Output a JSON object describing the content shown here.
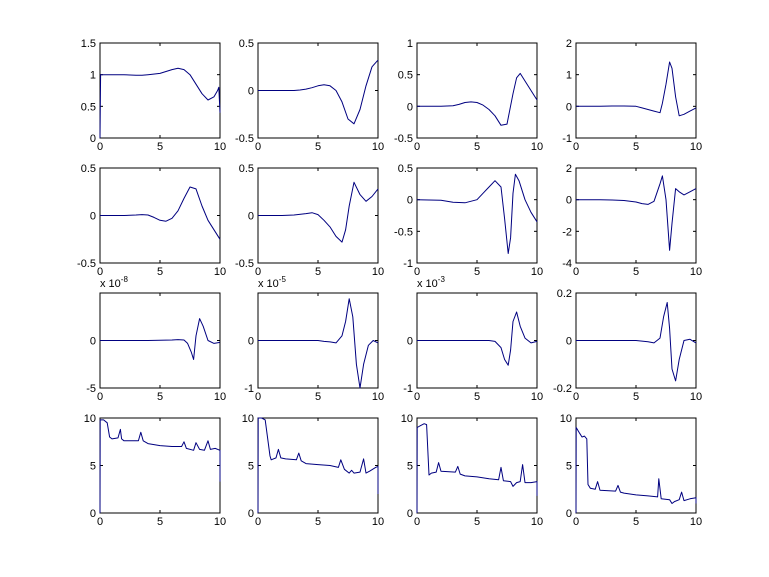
{
  "figure": {
    "background": "#ffffff",
    "line_color": "#000080",
    "axes_color": "#000000"
  },
  "chart_data": [
    {
      "type": "line",
      "grid": false,
      "xlim": [
        0,
        10
      ],
      "ylim": [
        0,
        1.5
      ],
      "xticks": [
        0,
        5,
        10
      ],
      "xtick_labels": [
        "0",
        "5",
        "10"
      ],
      "yticks": [
        0,
        0.5,
        1,
        1.5
      ],
      "ytick_labels": [
        "0",
        "0.5",
        "1",
        "1.5"
      ],
      "exponent": "",
      "series": [
        {
          "x": [
            0,
            0.05,
            0.1,
            2,
            3,
            3.5,
            4,
            5,
            5.5,
            6,
            6.5,
            7,
            7.5,
            8,
            8.5,
            9,
            9.5,
            9.8,
            9.9,
            10
          ],
          "y": [
            0,
            1.0,
            1.0,
            1.0,
            0.99,
            0.99,
            1.0,
            1.02,
            1.05,
            1.08,
            1.1,
            1.08,
            1.0,
            0.85,
            0.7,
            0.6,
            0.65,
            0.75,
            0.8,
            0.4
          ]
        }
      ]
    },
    {
      "type": "line",
      "grid": false,
      "xlim": [
        0,
        10
      ],
      "ylim": [
        -0.5,
        0.5
      ],
      "xticks": [
        0,
        5,
        10
      ],
      "xtick_labels": [
        "0",
        "5",
        "10"
      ],
      "yticks": [
        -0.5,
        0,
        0.5
      ],
      "ytick_labels": [
        "-0.5",
        "0",
        "0.5"
      ],
      "exponent": "",
      "series": [
        {
          "x": [
            0,
            1,
            2,
            3,
            3.5,
            4,
            4.5,
            5,
            5.5,
            6,
            6.5,
            7,
            7.5,
            8,
            8.5,
            9,
            9.5,
            10
          ],
          "y": [
            0,
            0,
            0,
            0,
            0.005,
            0.015,
            0.03,
            0.05,
            0.06,
            0.05,
            0.0,
            -0.12,
            -0.3,
            -0.35,
            -0.2,
            0.05,
            0.25,
            0.32
          ]
        }
      ]
    },
    {
      "type": "line",
      "grid": false,
      "xlim": [
        0,
        10
      ],
      "ylim": [
        -0.5,
        1
      ],
      "xticks": [
        0,
        5,
        10
      ],
      "xtick_labels": [
        "0",
        "5",
        "10"
      ],
      "yticks": [
        -0.5,
        0,
        0.5,
        1
      ],
      "ytick_labels": [
        "-0.5",
        "0",
        "0.5",
        "1"
      ],
      "exponent": "",
      "series": [
        {
          "x": [
            0,
            1,
            2,
            3,
            3.5,
            4,
            4.5,
            5,
            5.5,
            6,
            6.5,
            7,
            7.5,
            8,
            8.3,
            8.6,
            9,
            9.5,
            10
          ],
          "y": [
            0,
            0,
            0,
            0.01,
            0.03,
            0.06,
            0.07,
            0.06,
            0.02,
            -0.05,
            -0.15,
            -0.3,
            -0.28,
            0.2,
            0.45,
            0.52,
            0.4,
            0.25,
            0.1
          ]
        }
      ]
    },
    {
      "type": "line",
      "grid": false,
      "xlim": [
        0,
        10
      ],
      "ylim": [
        -1,
        2
      ],
      "xticks": [
        0,
        5,
        10
      ],
      "xtick_labels": [
        "0",
        "5",
        "10"
      ],
      "yticks": [
        -1,
        0,
        1,
        2
      ],
      "ytick_labels": [
        "-1",
        "0",
        "1",
        "2"
      ],
      "exponent": "",
      "series": [
        {
          "x": [
            0,
            2,
            3,
            4,
            5,
            5.5,
            6,
            6.5,
            7,
            7.2,
            7.5,
            7.8,
            8,
            8.3,
            8.6,
            9,
            9.5,
            10
          ],
          "y": [
            0,
            0,
            0.01,
            0.01,
            0.0,
            -0.05,
            -0.1,
            -0.15,
            -0.2,
            0.1,
            0.7,
            1.4,
            1.2,
            0.3,
            -0.3,
            -0.25,
            -0.15,
            -0.05
          ]
        }
      ]
    },
    {
      "type": "line",
      "grid": false,
      "xlim": [
        0,
        10
      ],
      "ylim": [
        -0.5,
        0.5
      ],
      "xticks": [
        0,
        5,
        10
      ],
      "xtick_labels": [
        "0",
        "5",
        "10"
      ],
      "yticks": [
        -0.5,
        0,
        0.5
      ],
      "ytick_labels": [
        "-0.5",
        "0",
        "0.5"
      ],
      "exponent": "",
      "series": [
        {
          "x": [
            0,
            2,
            3,
            3.5,
            4,
            4.5,
            5,
            5.5,
            6,
            6.5,
            7,
            7.5,
            8,
            8.5,
            9,
            9.5,
            10
          ],
          "y": [
            0,
            0,
            0.005,
            0.01,
            0.005,
            -0.02,
            -0.05,
            -0.06,
            -0.03,
            0.05,
            0.18,
            0.3,
            0.28,
            0.1,
            -0.05,
            -0.15,
            -0.25
          ]
        }
      ]
    },
    {
      "type": "line",
      "grid": false,
      "xlim": [
        0,
        10
      ],
      "ylim": [
        -0.5,
        0.5
      ],
      "xticks": [
        0,
        5,
        10
      ],
      "xtick_labels": [
        "0",
        "5",
        "10"
      ],
      "yticks": [
        -0.5,
        0,
        0.5
      ],
      "ytick_labels": [
        "-0.5",
        "0",
        "0.5"
      ],
      "exponent": "",
      "series": [
        {
          "x": [
            0,
            2,
            3,
            4,
            4.5,
            5,
            5.5,
            6,
            6.5,
            7,
            7.3,
            7.6,
            8,
            8.5,
            9,
            9.5,
            10
          ],
          "y": [
            0,
            0,
            0.005,
            0.02,
            0.03,
            0.01,
            -0.05,
            -0.12,
            -0.22,
            -0.28,
            -0.15,
            0.1,
            0.35,
            0.22,
            0.15,
            0.2,
            0.28
          ]
        }
      ]
    },
    {
      "type": "line",
      "grid": false,
      "xlim": [
        0,
        10
      ],
      "ylim": [
        -1,
        0.5
      ],
      "xticks": [
        0,
        5,
        10
      ],
      "xtick_labels": [
        "0",
        "5",
        "10"
      ],
      "yticks": [
        -1,
        -0.5,
        0,
        0.5
      ],
      "ytick_labels": [
        "-1",
        "-0.5",
        "0",
        "0.5"
      ],
      "exponent": "",
      "series": [
        {
          "x": [
            0,
            2,
            3,
            4,
            5,
            5.5,
            6,
            6.5,
            7,
            7.3,
            7.6,
            7.8,
            8,
            8.2,
            8.5,
            9,
            9.5,
            10
          ],
          "y": [
            0,
            -0.01,
            -0.04,
            -0.05,
            0.0,
            0.1,
            0.2,
            0.3,
            0.2,
            -0.3,
            -0.85,
            -0.6,
            0.1,
            0.4,
            0.3,
            0.0,
            -0.2,
            -0.35
          ]
        }
      ]
    },
    {
      "type": "line",
      "grid": false,
      "xlim": [
        0,
        10
      ],
      "ylim": [
        -4,
        2
      ],
      "xticks": [
        0,
        5,
        10
      ],
      "xtick_labels": [
        "0",
        "5",
        "10"
      ],
      "yticks": [
        -4,
        -2,
        0,
        2
      ],
      "ytick_labels": [
        "-4",
        "-2",
        "0",
        "2"
      ],
      "exponent": "",
      "series": [
        {
          "x": [
            0,
            2,
            3,
            4,
            5,
            5.5,
            6,
            6.5,
            7,
            7.2,
            7.5,
            7.8,
            8,
            8.3,
            8.6,
            9,
            9.5,
            10
          ],
          "y": [
            0,
            0,
            -0.02,
            -0.05,
            -0.15,
            -0.25,
            -0.3,
            -0.1,
            1.0,
            1.5,
            0.0,
            -3.2,
            -1.5,
            0.7,
            0.5,
            0.3,
            0.5,
            0.7
          ]
        }
      ]
    },
    {
      "type": "line",
      "grid": false,
      "xlim": [
        0,
        10
      ],
      "ylim": [
        -5,
        5
      ],
      "xticks": [
        0,
        5,
        10
      ],
      "xtick_labels": [
        "0",
        "5",
        "10"
      ],
      "yticks": [
        -5,
        0,
        5
      ],
      "ytick_labels": [
        "-5",
        "0",
        ""
      ],
      "exponent": "x 10-8",
      "series": [
        {
          "x": [
            0,
            2,
            4,
            6,
            6.5,
            7,
            7.3,
            7.6,
            7.8,
            8,
            8.3,
            8.6,
            9,
            9.5,
            10
          ],
          "y": [
            0,
            0,
            0,
            0.05,
            0.1,
            0.05,
            -0.3,
            -1.2,
            -2.0,
            0.5,
            2.3,
            1.5,
            0.0,
            -0.3,
            -0.2
          ]
        }
      ]
    },
    {
      "type": "line",
      "grid": false,
      "xlim": [
        0,
        10
      ],
      "ylim": [
        -1,
        1
      ],
      "xticks": [
        0,
        5,
        10
      ],
      "xtick_labels": [
        "0",
        "5",
        "10"
      ],
      "yticks": [
        -1,
        0,
        1
      ],
      "ytick_labels": [
        "-1",
        "0",
        ""
      ],
      "exponent": "x 10-5",
      "series": [
        {
          "x": [
            0,
            2,
            4,
            5,
            5.5,
            6,
            6.5,
            7,
            7.3,
            7.6,
            7.9,
            8.2,
            8.5,
            8.8,
            9.2,
            9.6,
            10
          ],
          "y": [
            0,
            0,
            0,
            0.0,
            -0.02,
            -0.03,
            -0.05,
            0.1,
            0.4,
            0.88,
            0.5,
            -0.5,
            -1.0,
            -0.5,
            -0.1,
            0.0,
            -0.05
          ]
        }
      ]
    },
    {
      "type": "line",
      "grid": false,
      "xlim": [
        0,
        10
      ],
      "ylim": [
        -1,
        1
      ],
      "xticks": [
        0,
        5,
        10
      ],
      "xtick_labels": [
        "0",
        "5",
        "10"
      ],
      "yticks": [
        -1,
        0,
        1
      ],
      "ytick_labels": [
        "-1",
        "0",
        ""
      ],
      "exponent": "x 10-3",
      "series": [
        {
          "x": [
            0,
            2,
            4,
            5,
            6,
            6.5,
            7,
            7.3,
            7.6,
            7.8,
            8,
            8.3,
            8.6,
            9,
            9.5,
            10
          ],
          "y": [
            0,
            0,
            0,
            0.0,
            0.0,
            -0.02,
            -0.15,
            -0.4,
            -0.52,
            -0.2,
            0.4,
            0.6,
            0.3,
            0.05,
            -0.05,
            -0.02
          ]
        }
      ]
    },
    {
      "type": "line",
      "grid": false,
      "xlim": [
        0,
        10
      ],
      "ylim": [
        -0.2,
        0.2
      ],
      "xticks": [
        0,
        5,
        10
      ],
      "xtick_labels": [
        "0",
        "5",
        "10"
      ],
      "yticks": [
        -0.2,
        0,
        0.2
      ],
      "ytick_labels": [
        "-0.2",
        "0",
        "0.2"
      ],
      "exponent": "",
      "series": [
        {
          "x": [
            0,
            2,
            4,
            5,
            6,
            6.5,
            7,
            7.3,
            7.6,
            7.8,
            8,
            8.3,
            8.6,
            9,
            9.5,
            10
          ],
          "y": [
            0,
            0,
            0,
            0.0,
            -0.005,
            -0.01,
            0.01,
            0.1,
            0.16,
            0.05,
            -0.12,
            -0.17,
            -0.08,
            0.0,
            0.005,
            -0.01
          ]
        }
      ]
    },
    {
      "type": "line",
      "grid": false,
      "xlim": [
        0,
        10
      ],
      "ylim": [
        0,
        10
      ],
      "xticks": [
        0,
        5,
        10
      ],
      "xtick_labels": [
        "0",
        "5",
        "10"
      ],
      "yticks": [
        0,
        5,
        10
      ],
      "ytick_labels": [
        "0",
        "5",
        "10"
      ],
      "exponent": "",
      "series": [
        {
          "x": [
            0,
            0.02,
            0.3,
            0.6,
            0.8,
            1.0,
            1.5,
            1.7,
            1.8,
            2.0,
            3.2,
            3.4,
            3.6,
            4,
            5,
            6,
            6.8,
            7.0,
            7.2,
            7.8,
            8,
            8.3,
            8.7,
            9.0,
            9.2,
            9.6,
            10,
            10
          ],
          "y": [
            0,
            9.8,
            9.8,
            9.5,
            8.0,
            7.8,
            7.9,
            8.8,
            7.8,
            7.6,
            7.6,
            8.5,
            7.6,
            7.3,
            7.1,
            7.0,
            7.0,
            7.5,
            6.8,
            6.6,
            7.4,
            6.7,
            6.6,
            7.6,
            6.7,
            6.8,
            6.6,
            3.3
          ]
        }
      ]
    },
    {
      "type": "line",
      "grid": false,
      "xlim": [
        0,
        10
      ],
      "ylim": [
        0,
        10
      ],
      "xticks": [
        0,
        5,
        10
      ],
      "xtick_labels": [
        "0",
        "5",
        "10"
      ],
      "yticks": [
        0,
        5,
        10
      ],
      "ytick_labels": [
        "0",
        "5",
        "10"
      ],
      "exponent": "",
      "series": [
        {
          "x": [
            0,
            0.02,
            0.3,
            0.6,
            1.0,
            1.1,
            1.5,
            1.7,
            1.9,
            2.3,
            3.2,
            3.4,
            3.6,
            4,
            5,
            6,
            6.7,
            6.9,
            7.2,
            7.6,
            7.8,
            8.0,
            8.5,
            8.8,
            9.0,
            9.3,
            9.8,
            10,
            10
          ],
          "y": [
            0,
            10,
            10,
            9.8,
            6.0,
            5.6,
            5.8,
            6.7,
            5.8,
            5.7,
            5.6,
            6.3,
            5.5,
            5.2,
            5.1,
            5.0,
            4.8,
            5.6,
            4.6,
            4.2,
            4.5,
            4.2,
            4.3,
            5.7,
            4.2,
            4.4,
            4.8,
            4.9,
            2.0
          ]
        }
      ]
    },
    {
      "type": "line",
      "grid": false,
      "xlim": [
        0,
        10
      ],
      "ylim": [
        0,
        10
      ],
      "xticks": [
        0,
        5,
        10
      ],
      "xtick_labels": [
        "0",
        "5",
        "10"
      ],
      "yticks": [
        0,
        5,
        10
      ],
      "ytick_labels": [
        "0",
        "5",
        "10"
      ],
      "exponent": "",
      "series": [
        {
          "x": [
            0,
            0.02,
            0.3,
            0.6,
            0.8,
            1.0,
            1.2,
            1.6,
            1.8,
            2.0,
            3.2,
            3.4,
            3.6,
            4,
            5,
            6,
            6.8,
            7.0,
            7.2,
            7.8,
            8.0,
            8.3,
            8.6,
            8.8,
            9.0,
            9.5,
            10,
            10
          ],
          "y": [
            0,
            9.0,
            9.2,
            9.4,
            9.3,
            4.0,
            4.2,
            4.3,
            5.3,
            4.4,
            4.3,
            4.9,
            4.1,
            3.9,
            3.8,
            3.6,
            3.5,
            4.8,
            3.4,
            3.3,
            2.8,
            3.2,
            3.3,
            5.1,
            3.2,
            3.2,
            3.3,
            1.8
          ]
        }
      ]
    },
    {
      "type": "line",
      "grid": false,
      "xlim": [
        0,
        10
      ],
      "ylim": [
        0,
        10
      ],
      "xticks": [
        0,
        5,
        10
      ],
      "xtick_labels": [
        "0",
        "5",
        "10"
      ],
      "yticks": [
        0,
        5,
        10
      ],
      "ytick_labels": [
        "0",
        "5",
        "10"
      ],
      "exponent": "",
      "series": [
        {
          "x": [
            0,
            0.02,
            0.3,
            0.5,
            0.7,
            0.9,
            1.0,
            1.2,
            1.6,
            1.8,
            2.0,
            3.3,
            3.5,
            3.7,
            4,
            5,
            6,
            6.8,
            6.9,
            7.1,
            7.8,
            8.0,
            8.2,
            8.6,
            8.8,
            9.0,
            9.5,
            10,
            10
          ],
          "y": [
            0,
            9.0,
            8.4,
            8.0,
            8.1,
            7.8,
            3.0,
            2.6,
            2.5,
            3.3,
            2.4,
            2.3,
            2.9,
            2.2,
            2.1,
            1.9,
            1.8,
            1.7,
            3.6,
            1.5,
            1.4,
            1.0,
            1.2,
            1.4,
            2.2,
            1.3,
            1.5,
            1.6,
            1.0
          ]
        }
      ]
    }
  ]
}
